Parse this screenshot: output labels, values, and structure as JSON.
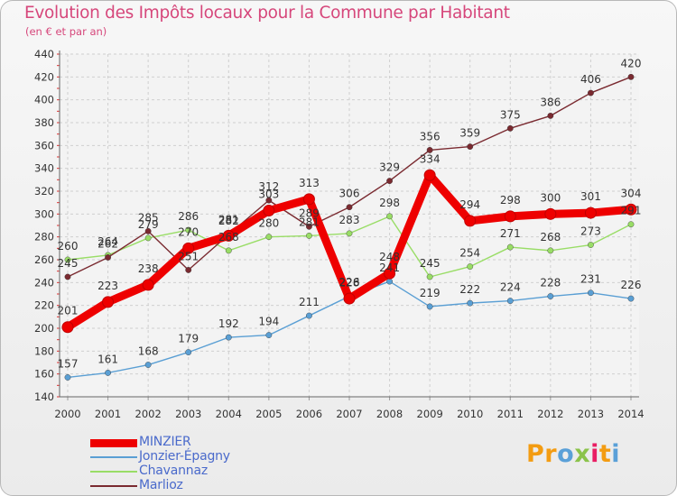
{
  "chart_data": {
    "type": "line",
    "title": "Evolution des Impôts locaux pour la Commune par Habitant",
    "subtitle": "(en € et par an)",
    "x": [
      "2000",
      "2001",
      "2002",
      "2003",
      "2004",
      "2005",
      "2006",
      "2007",
      "2008",
      "2009",
      "2010",
      "2011",
      "2012",
      "2013",
      "2014"
    ],
    "ylim": [
      140,
      440
    ],
    "yticks": [
      140,
      160,
      180,
      200,
      220,
      240,
      260,
      280,
      300,
      320,
      340,
      360,
      380,
      400,
      420,
      440
    ],
    "grid": true,
    "legend_position": "bottom-left",
    "series": [
      {
        "name": "MINZIER",
        "color": "#ee0000",
        "values": [
          201,
          223,
          238,
          270,
          281,
          303,
          313,
          226,
          248,
          334,
          294,
          298,
          300,
          301,
          304
        ]
      },
      {
        "name": "Jonzier-Épagny",
        "color": "#5a9fd4",
        "values": [
          157,
          161,
          168,
          179,
          192,
          194,
          211,
          228,
          241,
          219,
          222,
          224,
          228,
          231,
          226
        ]
      },
      {
        "name": "Chavannaz",
        "color": "#99dd66",
        "values": [
          260,
          264,
          279,
          286,
          268,
          280,
          281,
          283,
          298,
          245,
          254,
          271,
          268,
          273,
          291
        ]
      },
      {
        "name": "Marlioz",
        "color": "#7a2a30",
        "values": [
          245,
          262,
          285,
          251,
          282,
          312,
          289,
          306,
          329,
          356,
          359,
          375,
          386,
          406,
          420
        ]
      }
    ]
  },
  "branding": {
    "logo_text": "Proxiti",
    "logo_letters": [
      {
        "ch": "P",
        "color": "#f39c12"
      },
      {
        "ch": "r",
        "color": "#f39c12"
      },
      {
        "ch": "o",
        "color": "#5aa0d8"
      },
      {
        "ch": "x",
        "color": "#8bc34a"
      },
      {
        "ch": "i",
        "color": "#e91e63"
      },
      {
        "ch": "t",
        "color": "#f39c12"
      },
      {
        "ch": "i",
        "color": "#5aa0d8"
      }
    ]
  }
}
